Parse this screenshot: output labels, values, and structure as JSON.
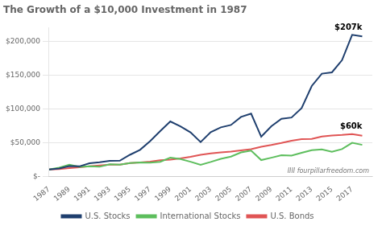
{
  "chart_data": {
    "type": "line",
    "title": "The Growth of a $10,000 Investment in 1987",
    "x": [
      1987,
      1988,
      1989,
      1990,
      1991,
      1992,
      1993,
      1994,
      1995,
      1996,
      1997,
      1998,
      1999,
      2000,
      2001,
      2002,
      2003,
      2004,
      2005,
      2006,
      2007,
      2008,
      2009,
      2010,
      2011,
      2012,
      2013,
      2014,
      2015,
      2016,
      2017,
      2018
    ],
    "series": [
      {
        "name": "U.S. Stocks",
        "color": "#1f3f6e",
        "values": [
          10000,
          11600,
          15200,
          14700,
          19200,
          20700,
          22800,
          23100,
          31800,
          39100,
          52100,
          67000,
          81200,
          73800,
          65000,
          50700,
          65300,
          72400,
          75900,
          87900,
          92700,
          58500,
          74000,
          85200,
          87000,
          100900,
          133600,
          151900,
          153800,
          171900,
          209400,
          207000
        ]
      },
      {
        "name": "International Stocks",
        "color": "#5dbe5d",
        "values": [
          10000,
          12800,
          17200,
          13900,
          14800,
          14100,
          17800,
          17200,
          19500,
          20500,
          20300,
          21500,
          27500,
          25600,
          21500,
          17000,
          21200,
          25900,
          29200,
          35300,
          38000,
          24000,
          27500,
          31200,
          30500,
          34700,
          38600,
          39800,
          36400,
          40300,
          49600,
          46500
        ]
      },
      {
        "name": "U.S. Bonds",
        "color": "#e05555",
        "values": [
          10000,
          10800,
          12200,
          13200,
          14800,
          15900,
          17200,
          17300,
          19500,
          20600,
          21700,
          23800,
          24700,
          26400,
          28800,
          31700,
          33900,
          35300,
          36500,
          38200,
          40100,
          43800,
          46300,
          49300,
          52700,
          55000,
          55200,
          58800,
          60500,
          61200,
          62500,
          60000
        ]
      }
    ],
    "xlim": [
      1987,
      2019
    ],
    "xticks": [
      1987,
      1989,
      1991,
      1993,
      1995,
      1997,
      1999,
      2001,
      2003,
      2005,
      2007,
      2009,
      2011,
      2013,
      2015,
      2017
    ],
    "ylim": [
      0,
      220000
    ],
    "yticks": [
      {
        "value": 0,
        "label": "$-"
      },
      {
        "value": 50000,
        "label": "$50,000"
      },
      {
        "value": 100000,
        "label": "$100,000"
      },
      {
        "value": 150000,
        "label": "$150,000"
      },
      {
        "value": 200000,
        "label": "$200,000"
      }
    ],
    "grid": true,
    "legend": "bottom",
    "annotations": [
      {
        "text": "$207k",
        "series": "U.S. Stocks"
      },
      {
        "text": "$60k",
        "series": "U.S. Bonds"
      },
      {
        "text": "IIII fourpillarfreedom.com"
      }
    ]
  }
}
